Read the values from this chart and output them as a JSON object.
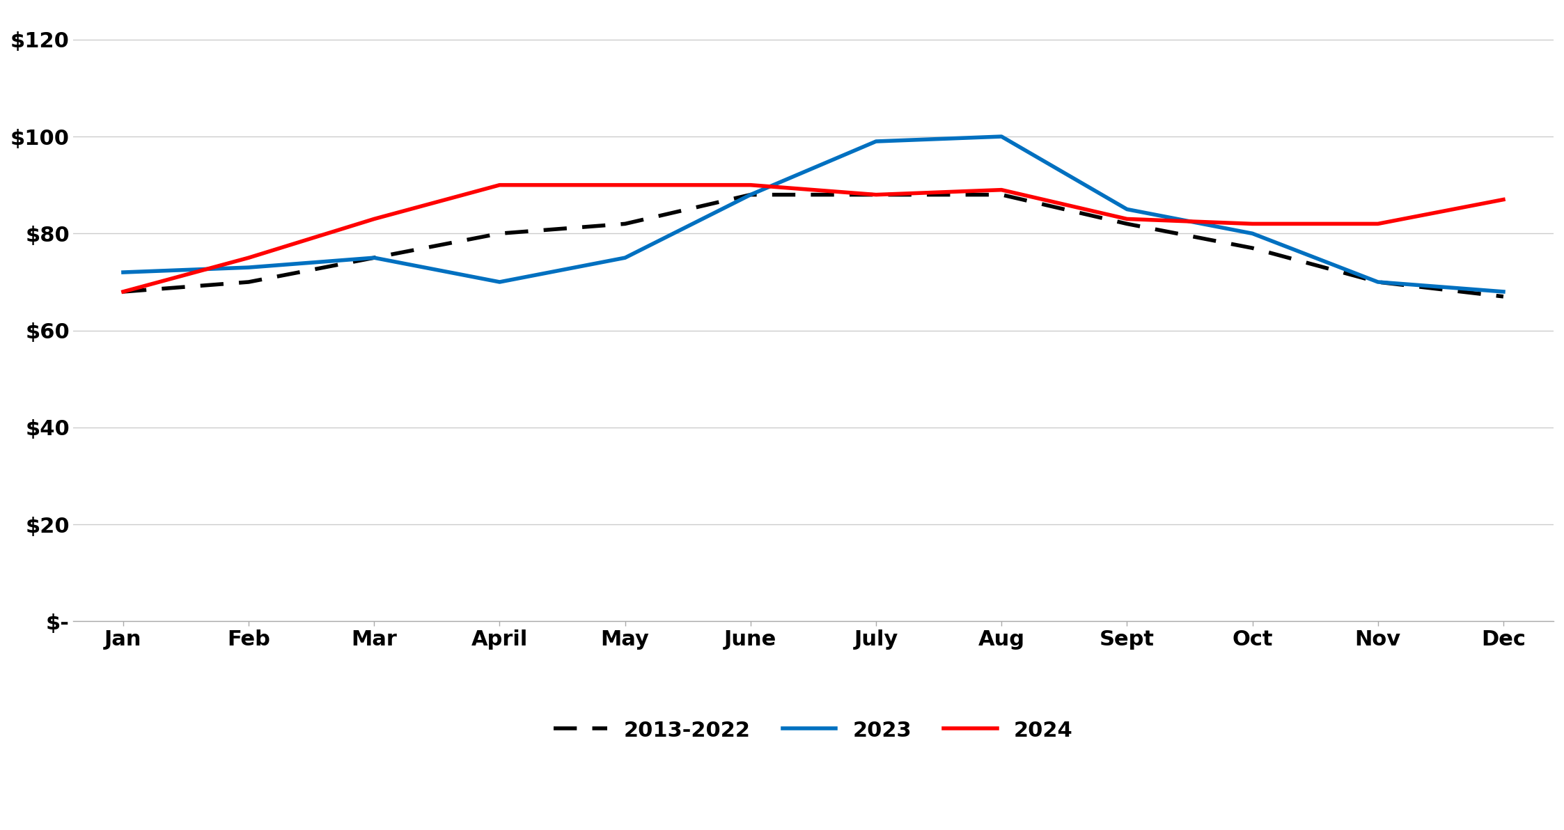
{
  "months": [
    "Jan",
    "Feb",
    "Mar",
    "April",
    "May",
    "June",
    "July",
    "Aug",
    "Sept",
    "Oct",
    "Nov",
    "Dec"
  ],
  "series_2013_2022": [
    68,
    70,
    75,
    80,
    82,
    88,
    88,
    88,
    82,
    77,
    70,
    67
  ],
  "series_2023": [
    72,
    73,
    75,
    70,
    75,
    88,
    99,
    100,
    85,
    80,
    70,
    68
  ],
  "series_2024": [
    68,
    75,
    83,
    90,
    90,
    90,
    88,
    89,
    83,
    82,
    82,
    87
  ],
  "color_2013_2022": "#000000",
  "color_2023": "#0070C0",
  "color_2024": "#FF0000",
  "label_2013_2022": "2013-2022",
  "label_2023": "2023",
  "label_2024": "2024",
  "yticks": [
    0,
    20,
    40,
    60,
    80,
    100,
    120
  ],
  "ytick_labels": [
    "$-",
    "$20",
    "$40",
    "$60",
    "$80",
    "$100",
    "$120"
  ],
  "ylim": [
    0,
    126
  ],
  "background_color": "#ffffff",
  "linewidth": 4.0,
  "tick_fontsize": 22,
  "legend_fontsize": 22
}
